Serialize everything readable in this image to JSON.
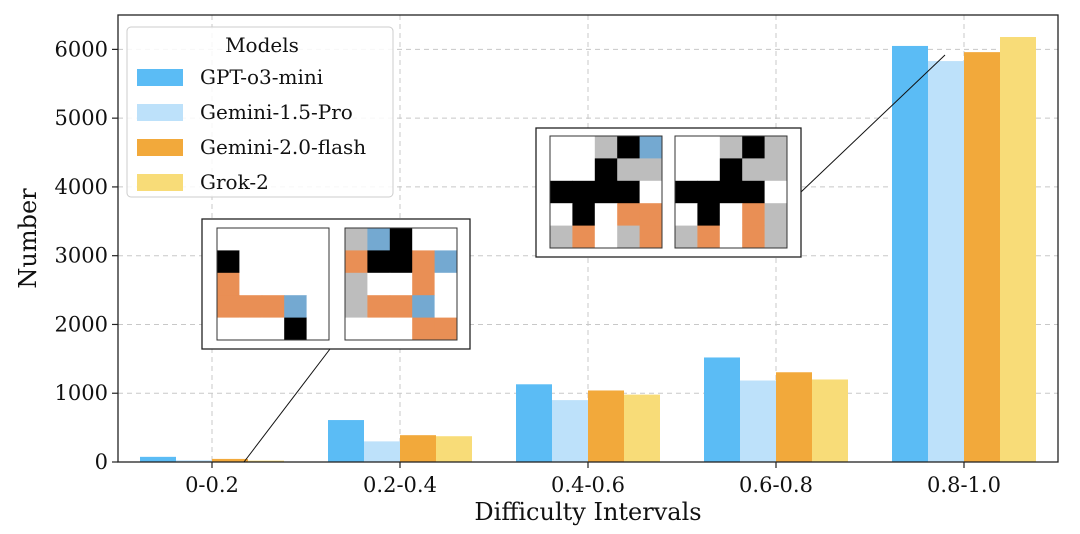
{
  "chart_data": {
    "type": "bar",
    "xlabel": "Difficulty Intervals",
    "ylabel": "Number",
    "ylim": [
      0,
      6500
    ],
    "yticks": [
      0,
      1000,
      2000,
      3000,
      4000,
      5000,
      6000
    ],
    "grid": true,
    "categories": [
      "0-0.2",
      "0.2-0.4",
      "0.4-0.6",
      "0.6-0.8",
      "0.8-1.0"
    ],
    "series": [
      {
        "name": "GPT-o3-mini",
        "color": "#5bbcf5",
        "values": [
          75,
          610,
          1130,
          1520,
          6050
        ]
      },
      {
        "name": "Gemini-1.5-Pro",
        "color": "#bde1fa",
        "values": [
          25,
          300,
          900,
          1185,
          5830
        ]
      },
      {
        "name": "Gemini-2.0-flash",
        "color": "#f2a93b",
        "values": [
          45,
          390,
          1040,
          1305,
          5960
        ]
      },
      {
        "name": "Grok-2",
        "color": "#f8dc78",
        "values": [
          20,
          375,
          980,
          1200,
          6180
        ]
      }
    ],
    "legend": {
      "title": "Models",
      "placement": "top-left"
    },
    "insets": [
      {
        "anchor_category": "0-0.2",
        "grids": [
          [
            [
              "w",
              "w",
              "w",
              "w",
              "w"
            ],
            [
              "k",
              "w",
              "w",
              "w",
              "w"
            ],
            [
              "o",
              "w",
              "w",
              "w",
              "w"
            ],
            [
              "o",
              "o",
              "o",
              "b",
              "w"
            ],
            [
              "w",
              "w",
              "w",
              "k",
              "w"
            ]
          ],
          [
            [
              "g",
              "b",
              "k",
              "w",
              "w"
            ],
            [
              "o",
              "k",
              "k",
              "o",
              "b"
            ],
            [
              "g",
              "w",
              "w",
              "o",
              "w"
            ],
            [
              "g",
              "o",
              "o",
              "b",
              "w"
            ],
            [
              "w",
              "w",
              "w",
              "o",
              "o"
            ]
          ]
        ]
      },
      {
        "anchor_category": "0.8-1.0",
        "grids": [
          [
            [
              "w",
              "w",
              "g",
              "k",
              "b"
            ],
            [
              "w",
              "w",
              "k",
              "g",
              "g"
            ],
            [
              "k",
              "k",
              "k",
              "k",
              "w"
            ],
            [
              "w",
              "k",
              "w",
              "o",
              "o"
            ],
            [
              "g",
              "o",
              "w",
              "g",
              "o"
            ]
          ],
          [
            [
              "w",
              "w",
              "g",
              "k",
              "g"
            ],
            [
              "w",
              "w",
              "k",
              "g",
              "g"
            ],
            [
              "k",
              "k",
              "k",
              "k",
              "w"
            ],
            [
              "w",
              "k",
              "w",
              "o",
              "g"
            ],
            [
              "g",
              "o",
              "w",
              "o",
              "g"
            ]
          ]
        ]
      }
    ],
    "cell_colors": {
      "w": "#ffffff",
      "k": "#000000",
      "o": "#e98f55",
      "b": "#74a9d1",
      "g": "#bdbdbd"
    }
  }
}
